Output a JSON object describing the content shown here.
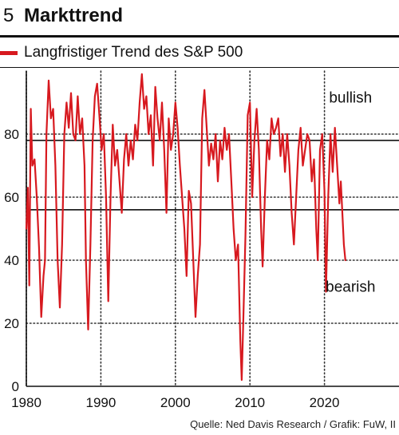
{
  "header": {
    "number": "5",
    "title": "Markttrend"
  },
  "legend": {
    "label": "Langfristiger Trend des S&P 500",
    "color": "#d7191f"
  },
  "source": "Quelle: Ned Davis Research / Grafik: FuW, II",
  "chart_data": {
    "type": "line",
    "title": "Markttrend",
    "xlabel": "",
    "ylabel": "",
    "xlim": [
      1980,
      2030
    ],
    "ylim": [
      0,
      100
    ],
    "x_ticks": [
      1980,
      1990,
      2000,
      2010,
      2020
    ],
    "y_ticks": [
      0,
      20,
      40,
      60,
      80
    ],
    "reference_lines": [
      78,
      56
    ],
    "grid": "dotted",
    "annotations": [
      {
        "text": "bullish",
        "x": 2023.5,
        "y": 90
      },
      {
        "text": "bearish",
        "x": 2023.5,
        "y": 30
      }
    ],
    "series": [
      {
        "name": "Langfristiger Trend des S&P 500",
        "color": "#d7191f",
        "points": [
          [
            1980.0,
            50
          ],
          [
            1980.2,
            63
          ],
          [
            1980.4,
            32
          ],
          [
            1980.6,
            88
          ],
          [
            1980.8,
            70
          ],
          [
            1981.1,
            72
          ],
          [
            1981.4,
            60
          ],
          [
            1981.7,
            44
          ],
          [
            1982.0,
            22
          ],
          [
            1982.3,
            35
          ],
          [
            1982.5,
            40
          ],
          [
            1982.7,
            80
          ],
          [
            1983.0,
            97
          ],
          [
            1983.3,
            85
          ],
          [
            1983.6,
            88
          ],
          [
            1983.9,
            70
          ],
          [
            1984.2,
            40
          ],
          [
            1984.5,
            25
          ],
          [
            1984.8,
            45
          ],
          [
            1985.1,
            80
          ],
          [
            1985.4,
            90
          ],
          [
            1985.7,
            82
          ],
          [
            1986.0,
            93
          ],
          [
            1986.3,
            80
          ],
          [
            1986.6,
            78
          ],
          [
            1986.9,
            92
          ],
          [
            1987.2,
            80
          ],
          [
            1987.5,
            85
          ],
          [
            1987.8,
            70
          ],
          [
            1988.0,
            40
          ],
          [
            1988.3,
            18
          ],
          [
            1988.6,
            45
          ],
          [
            1988.9,
            78
          ],
          [
            1989.2,
            92
          ],
          [
            1989.5,
            96
          ],
          [
            1989.8,
            86
          ],
          [
            1990.1,
            75
          ],
          [
            1990.4,
            80
          ],
          [
            1990.7,
            60
          ],
          [
            1991.0,
            27
          ],
          [
            1991.3,
            60
          ],
          [
            1991.6,
            83
          ],
          [
            1991.9,
            70
          ],
          [
            1992.2,
            75
          ],
          [
            1992.5,
            65
          ],
          [
            1992.8,
            55
          ],
          [
            1993.1,
            72
          ],
          [
            1993.4,
            80
          ],
          [
            1993.7,
            70
          ],
          [
            1994.0,
            78
          ],
          [
            1994.3,
            72
          ],
          [
            1994.6,
            83
          ],
          [
            1994.9,
            78
          ],
          [
            1995.2,
            90
          ],
          [
            1995.5,
            99
          ],
          [
            1995.8,
            88
          ],
          [
            1996.1,
            92
          ],
          [
            1996.4,
            80
          ],
          [
            1996.7,
            86
          ],
          [
            1997.0,
            70
          ],
          [
            1997.3,
            95
          ],
          [
            1997.6,
            85
          ],
          [
            1997.9,
            78
          ],
          [
            1998.2,
            90
          ],
          [
            1998.5,
            75
          ],
          [
            1998.8,
            55
          ],
          [
            1999.1,
            85
          ],
          [
            1999.4,
            75
          ],
          [
            1999.7,
            80
          ],
          [
            2000.0,
            90
          ],
          [
            2000.3,
            82
          ],
          [
            2000.6,
            70
          ],
          [
            2000.9,
            60
          ],
          [
            2001.2,
            50
          ],
          [
            2001.5,
            35
          ],
          [
            2001.8,
            62
          ],
          [
            2002.1,
            58
          ],
          [
            2002.4,
            40
          ],
          [
            2002.7,
            22
          ],
          [
            2003.0,
            35
          ],
          [
            2003.3,
            45
          ],
          [
            2003.6,
            85
          ],
          [
            2003.9,
            94
          ],
          [
            2004.2,
            82
          ],
          [
            2004.5,
            70
          ],
          [
            2004.8,
            77
          ],
          [
            2005.1,
            72
          ],
          [
            2005.4,
            80
          ],
          [
            2005.7,
            65
          ],
          [
            2006.0,
            78
          ],
          [
            2006.3,
            72
          ],
          [
            2006.6,
            82
          ],
          [
            2006.9,
            75
          ],
          [
            2007.2,
            80
          ],
          [
            2007.5,
            65
          ],
          [
            2007.8,
            50
          ],
          [
            2008.1,
            40
          ],
          [
            2008.4,
            45
          ],
          [
            2008.7,
            15
          ],
          [
            2008.9,
            2
          ],
          [
            2009.1,
            20
          ],
          [
            2009.4,
            48
          ],
          [
            2009.7,
            86
          ],
          [
            2010.0,
            90
          ],
          [
            2010.3,
            60
          ],
          [
            2010.6,
            78
          ],
          [
            2010.9,
            88
          ],
          [
            2011.2,
            75
          ],
          [
            2011.5,
            50
          ],
          [
            2011.7,
            38
          ],
          [
            2012.0,
            60
          ],
          [
            2012.3,
            78
          ],
          [
            2012.6,
            72
          ],
          [
            2012.9,
            85
          ],
          [
            2013.2,
            80
          ],
          [
            2013.5,
            82
          ],
          [
            2013.8,
            85
          ],
          [
            2014.1,
            73
          ],
          [
            2014.4,
            80
          ],
          [
            2014.7,
            68
          ],
          [
            2015.0,
            80
          ],
          [
            2015.3,
            70
          ],
          [
            2015.6,
            55
          ],
          [
            2015.9,
            45
          ],
          [
            2016.2,
            60
          ],
          [
            2016.5,
            75
          ],
          [
            2016.8,
            82
          ],
          [
            2017.1,
            70
          ],
          [
            2017.4,
            75
          ],
          [
            2017.7,
            80
          ],
          [
            2018.0,
            78
          ],
          [
            2018.3,
            65
          ],
          [
            2018.6,
            72
          ],
          [
            2018.9,
            50
          ],
          [
            2019.1,
            40
          ],
          [
            2019.4,
            75
          ],
          [
            2019.7,
            80
          ],
          [
            2020.0,
            62
          ],
          [
            2020.2,
            30
          ],
          [
            2020.5,
            60
          ],
          [
            2020.8,
            80
          ],
          [
            2021.1,
            68
          ],
          [
            2021.4,
            82
          ],
          [
            2021.7,
            70
          ],
          [
            2022.0,
            58
          ],
          [
            2022.2,
            65
          ],
          [
            2022.4,
            55
          ],
          [
            2022.6,
            45
          ],
          [
            2022.8,
            40
          ]
        ]
      }
    ]
  }
}
